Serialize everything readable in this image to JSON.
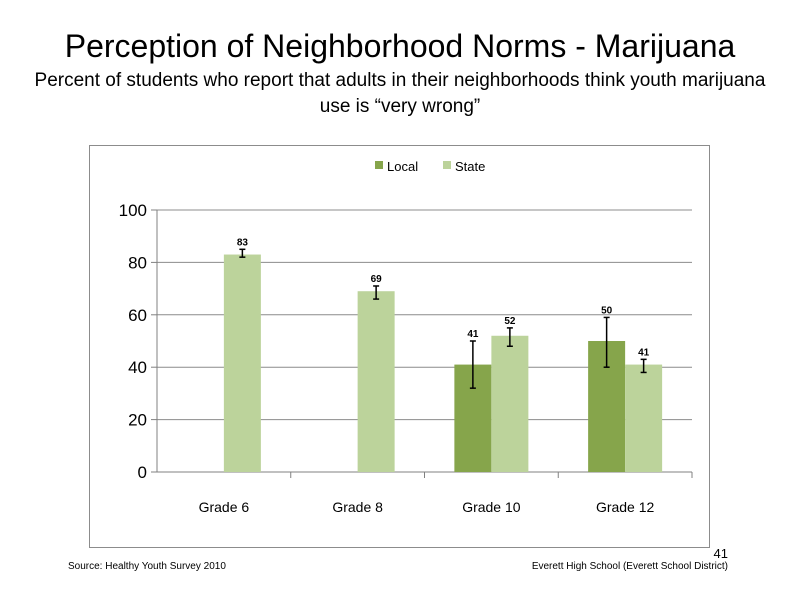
{
  "slide": {
    "title": "Perception  of Neighborhood  Norms - Marijuana",
    "subtitle": "Percent of students  who report that adults  in their neighborhoods  think  youth marijuana  use is “very wrong”",
    "source": "Source: Healthy  Youth Survey 2010",
    "school": "Everett High  School  (Everett School District)",
    "page_number": "41"
  },
  "chart_data": {
    "type": "bar",
    "categories": [
      "Grade 6",
      "Grade 8",
      "Grade 10",
      "Grade 12"
    ],
    "series": [
      {
        "name": "Local",
        "color": "#86a54b",
        "values": [
          null,
          null,
          41,
          50
        ],
        "data_labels": [
          "",
          "",
          "41",
          "50"
        ],
        "error_bars": [
          null,
          null,
          [
            32,
            50
          ],
          [
            40,
            59
          ]
        ]
      },
      {
        "name": "State",
        "color": "#bcd39b",
        "values": [
          83,
          69,
          52,
          41
        ],
        "data_labels": [
          "83",
          "69",
          "52",
          "41"
        ],
        "error_bars": [
          [
            82,
            85
          ],
          [
            66,
            71
          ],
          [
            48,
            55
          ],
          [
            38,
            43
          ]
        ]
      }
    ],
    "ylim": [
      0,
      100
    ],
    "yticks": [
      "0",
      "20",
      "40",
      "60",
      "80",
      "100"
    ],
    "grid": true,
    "legend_position": "top-center",
    "xlabel": "",
    "ylabel": ""
  }
}
